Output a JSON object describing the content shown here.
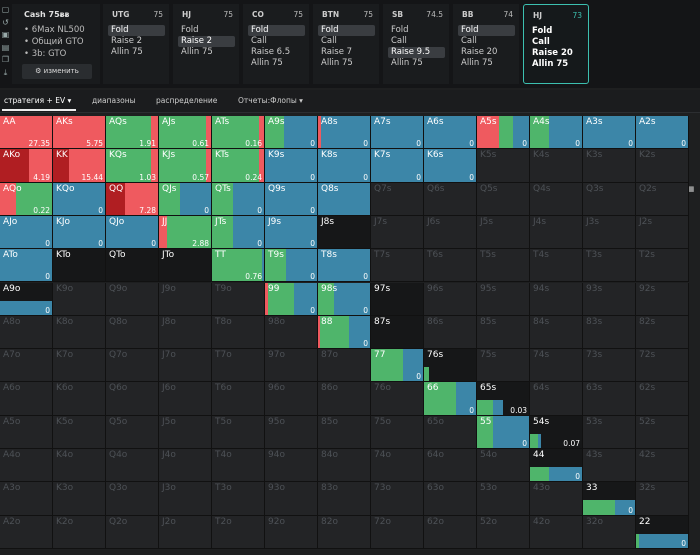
{
  "cash": {
    "title": "Cash 75ᴃᴃ",
    "lines": [
      "6Max NL500",
      "Общий GTO",
      "3b: GTO"
    ],
    "button": "изменить"
  },
  "positions": [
    {
      "name": "UTG",
      "stack": "75",
      "actions": [
        "Fold",
        "Raise 2",
        "Allin 75"
      ],
      "selected": 0,
      "active": false
    },
    {
      "name": "HJ",
      "stack": "75",
      "actions": [
        "Fold",
        "Raise 2",
        "Allin 75"
      ],
      "selected": 1,
      "active": false
    },
    {
      "name": "CO",
      "stack": "75",
      "actions": [
        "Fold",
        "Call",
        "Raise 6.5",
        "Allin 75"
      ],
      "selected": 0,
      "active": false
    },
    {
      "name": "BTN",
      "stack": "75",
      "actions": [
        "Fold",
        "Call",
        "Raise 7",
        "Allin 75"
      ],
      "selected": 0,
      "active": false
    },
    {
      "name": "SB",
      "stack": "74.5",
      "actions": [
        "Fold",
        "Call",
        "Raise 9.5",
        "Allin 75"
      ],
      "selected": 2,
      "active": false
    },
    {
      "name": "BB",
      "stack": "74",
      "actions": [
        "Fold",
        "Call",
        "Raise 20",
        "Allin 75"
      ],
      "selected": 0,
      "active": false
    },
    {
      "name": "HJ",
      "stack": "73",
      "actions": [
        "Fold",
        "Call",
        "Raise 20",
        "Allin 75"
      ],
      "selected": -1,
      "active": true
    }
  ],
  "tabs": [
    "стратегия + EV ▾",
    "диапазоны",
    "распределение",
    "Отчеты:Флопы ▾"
  ],
  "colors": {
    "raise": "#ef5a5f",
    "call": "#4fb56b",
    "fold": "#3c86a8",
    "allin": "#b01e22",
    "empty": "#232426"
  },
  "grid": {
    "rows": [
      [
        "AA",
        "AKs",
        "AQs",
        "AJs",
        "ATs",
        "A9s",
        "A8s",
        "A7s",
        "A6s",
        "A5s",
        "A4s",
        "A3s",
        "A2s"
      ],
      [
        "AKo",
        "KK",
        "KQs",
        "KJs",
        "KTs",
        "K9s",
        "K8s",
        "K7s",
        "K6s",
        "K5s",
        "K4s",
        "K3s",
        "K2s"
      ],
      [
        "AQo",
        "KQo",
        "QQ",
        "QJs",
        "QTs",
        "Q9s",
        "Q8s",
        "Q7s",
        "Q6s",
        "Q5s",
        "Q4s",
        "Q3s",
        "Q2s"
      ],
      [
        "AJo",
        "KJo",
        "QJo",
        "JJ",
        "JTs",
        "J9s",
        "J8s",
        "J7s",
        "J6s",
        "J5s",
        "J4s",
        "J3s",
        "J2s"
      ],
      [
        "ATo",
        "KTo",
        "QTo",
        "JTo",
        "TT",
        "T9s",
        "T8s",
        "T7s",
        "T6s",
        "T5s",
        "T4s",
        "T3s",
        "T2s"
      ],
      [
        "A9o",
        "K9o",
        "Q9o",
        "J9o",
        "T9o",
        "99",
        "98s",
        "97s",
        "96s",
        "95s",
        "94s",
        "93s",
        "92s"
      ],
      [
        "A8o",
        "K8o",
        "Q8o",
        "J8o",
        "T8o",
        "98o",
        "88",
        "87s",
        "86s",
        "85s",
        "84s",
        "83s",
        "82s"
      ],
      [
        "A7o",
        "K7o",
        "Q7o",
        "J7o",
        "T7o",
        "97o",
        "87o",
        "77",
        "76s",
        "75s",
        "74s",
        "73s",
        "72s"
      ],
      [
        "A6o",
        "K6o",
        "Q6o",
        "J6o",
        "T6o",
        "96o",
        "86o",
        "76o",
        "66",
        "65s",
        "64s",
        "63s",
        "62s"
      ],
      [
        "A5o",
        "K5o",
        "Q5o",
        "J5o",
        "T5o",
        "95o",
        "85o",
        "75o",
        "65o",
        "55",
        "54s",
        "53s",
        "52s"
      ],
      [
        "A4o",
        "K4o",
        "Q4o",
        "J4o",
        "T4o",
        "94o",
        "84o",
        "74o",
        "64o",
        "54o",
        "44",
        "43s",
        "42s"
      ],
      [
        "A3o",
        "K3o",
        "Q3o",
        "J3o",
        "T3o",
        "93o",
        "83o",
        "73o",
        "63o",
        "53o",
        "43o",
        "33",
        "32s"
      ],
      [
        "A2o",
        "K2o",
        "Q2o",
        "J2o",
        "T2o",
        "92o",
        "82o",
        "72o",
        "62o",
        "52o",
        "42o",
        "32o",
        "22"
      ]
    ],
    "hands": {
      "AA": {
        "ev": "27.35",
        "mix": [
          [
            "raise",
            1.0
          ]
        ]
      },
      "AKs": {
        "ev": "5.75",
        "mix": [
          [
            "raise",
            1.0
          ]
        ]
      },
      "AQs": {
        "ev": "1.91",
        "mix": [
          [
            "call",
            0.85
          ],
          [
            "raise",
            0.15
          ]
        ]
      },
      "AJs": {
        "ev": "0.61",
        "mix": [
          [
            "call",
            0.88
          ],
          [
            "raise",
            0.12
          ]
        ]
      },
      "ATs": {
        "ev": "0.16",
        "mix": [
          [
            "call",
            0.88
          ],
          [
            "raise",
            0.12
          ]
        ]
      },
      "A9s": {
        "ev": "0",
        "mix": [
          [
            "call",
            0.35
          ],
          [
            "fold",
            0.65
          ]
        ]
      },
      "A8s": {
        "ev": "0",
        "mix": [
          [
            "raise",
            0.05
          ],
          [
            "fold",
            0.95
          ]
        ]
      },
      "A7s": {
        "ev": "0",
        "mix": [
          [
            "fold",
            1.0
          ]
        ]
      },
      "A6s": {
        "ev": "0",
        "mix": [
          [
            "fold",
            1.0
          ]
        ]
      },
      "A5s": {
        "ev": "0",
        "mix": [
          [
            "raise",
            0.42
          ],
          [
            "call",
            0.25
          ],
          [
            "fold",
            0.33
          ]
        ]
      },
      "A4s": {
        "ev": "0",
        "mix": [
          [
            "call",
            0.35
          ],
          [
            "fold",
            0.65
          ]
        ]
      },
      "A3s": {
        "ev": "0",
        "mix": [
          [
            "fold",
            1.0
          ]
        ]
      },
      "A2s": {
        "ev": "0",
        "mix": [
          [
            "fold",
            1.0
          ]
        ]
      },
      "AKo": {
        "ev": "4.19",
        "mix": [
          [
            "allin",
            0.55
          ],
          [
            "raise",
            0.45
          ]
        ]
      },
      "KK": {
        "ev": "15.44",
        "mix": [
          [
            "allin",
            0.3
          ],
          [
            "raise",
            0.7
          ]
        ]
      },
      "KQs": {
        "ev": "1.03",
        "mix": [
          [
            "call",
            0.85
          ],
          [
            "raise",
            0.15
          ]
        ]
      },
      "KJs": {
        "ev": "0.57",
        "mix": [
          [
            "call",
            0.88
          ],
          [
            "raise",
            0.12
          ]
        ]
      },
      "KTs": {
        "ev": "0.24",
        "mix": [
          [
            "call",
            0.88
          ],
          [
            "raise",
            0.12
          ]
        ]
      },
      "K9s": {
        "ev": "0",
        "mix": [
          [
            "fold",
            1.0
          ]
        ]
      },
      "K8s": {
        "ev": "0",
        "mix": [
          [
            "fold",
            1.0
          ]
        ]
      },
      "K7s": {
        "ev": "0",
        "mix": [
          [
            "fold",
            1.0
          ]
        ]
      },
      "K6s": {
        "ev": "0",
        "mix": [
          [
            "fold",
            1.0
          ]
        ]
      },
      "AQo": {
        "ev": "0.22",
        "mix": [
          [
            "raise",
            0.3
          ],
          [
            "call",
            0.7
          ]
        ]
      },
      "KQo": {
        "ev": "0",
        "mix": [
          [
            "fold",
            1.0
          ]
        ]
      },
      "QQ": {
        "ev": "7.28",
        "mix": [
          [
            "allin",
            0.35
          ],
          [
            "raise",
            0.65
          ]
        ]
      },
      "QJs": {
        "ev": "0",
        "mix": [
          [
            "call",
            0.4
          ],
          [
            "fold",
            0.6
          ]
        ]
      },
      "QTs": {
        "ev": "0",
        "mix": [
          [
            "call",
            0.4
          ],
          [
            "fold",
            0.6
          ]
        ]
      },
      "Q9s": {
        "ev": "0",
        "mix": [
          [
            "fold",
            1.0
          ]
        ]
      },
      "Q8s": {
        "ev": "",
        "mix": [
          [
            "fold",
            1.0
          ]
        ]
      },
      "AJo": {
        "ev": "0",
        "mix": [
          [
            "fold",
            1.0
          ]
        ]
      },
      "KJo": {
        "ev": "0",
        "mix": [
          [
            "fold",
            1.0
          ]
        ]
      },
      "QJo": {
        "ev": "0",
        "mix": [
          [
            "fold",
            1.0
          ]
        ]
      },
      "JJ": {
        "ev": "2.88",
        "mix": [
          [
            "raise",
            0.15
          ],
          [
            "call",
            0.85
          ]
        ]
      },
      "JTs": {
        "ev": "0",
        "mix": [
          [
            "call",
            0.4
          ],
          [
            "fold",
            0.6
          ]
        ]
      },
      "J9s": {
        "ev": "0",
        "mix": [
          [
            "fold",
            1.0
          ]
        ]
      },
      "J8s": {
        "ev": "",
        "mix": []
      },
      "ATo": {
        "ev": "0",
        "mix": [
          [
            "fold",
            1.0
          ]
        ]
      },
      "KTo": {
        "ev": "",
        "mix": []
      },
      "QTo": {
        "ev": "",
        "mix": []
      },
      "JTo": {
        "ev": "",
        "mix": []
      },
      "TT": {
        "ev": "0.76",
        "mix": [
          [
            "call",
            0.95
          ],
          [
            "fold",
            0.05
          ]
        ]
      },
      "T9s": {
        "ev": "0",
        "mix": [
          [
            "call",
            0.4
          ],
          [
            "fold",
            0.6
          ]
        ]
      },
      "T8s": {
        "ev": "0",
        "mix": [
          [
            "fold",
            1.0
          ]
        ]
      },
      "A9o": {
        "ev": "0",
        "mix": [
          [
            "fold",
            1.0
          ]
        ],
        "half": true
      },
      "99": {
        "ev": "0",
        "mix": [
          [
            "raise",
            0.05
          ],
          [
            "call",
            0.5
          ],
          [
            "fold",
            0.45
          ]
        ]
      },
      "98s": {
        "ev": "0",
        "mix": [
          [
            "call",
            0.3
          ],
          [
            "fold",
            0.7
          ]
        ]
      },
      "97s": {
        "ev": "",
        "mix": []
      },
      "88": {
        "ev": "0",
        "mix": [
          [
            "raise",
            0.03
          ],
          [
            "call",
            0.55
          ],
          [
            "fold",
            0.42
          ]
        ]
      },
      "87s": {
        "ev": "",
        "mix": [],
        "half": true
      },
      "77": {
        "ev": "0",
        "mix": [
          [
            "call",
            0.6
          ],
          [
            "fold",
            0.4
          ]
        ]
      },
      "76s": {
        "ev": "",
        "mix": [
          [
            "call",
            0.1
          ]
        ],
        "half": true
      },
      "66": {
        "ev": "0",
        "mix": [
          [
            "call",
            0.6
          ],
          [
            "fold",
            0.4
          ]
        ]
      },
      "65s": {
        "ev": "0.03",
        "mix": [
          [
            "call",
            0.3
          ],
          [
            "fold",
            0.2
          ]
        ],
        "half": true
      },
      "55": {
        "ev": "0",
        "mix": [
          [
            "call",
            0.3
          ],
          [
            "fold",
            0.7
          ]
        ]
      },
      "54s": {
        "ev": "0.07",
        "mix": [
          [
            "call",
            0.15
          ],
          [
            "fold",
            0.05
          ]
        ],
        "half": true
      },
      "44": {
        "ev": "0",
        "mix": [
          [
            "call",
            0.35
          ],
          [
            "fold",
            0.65
          ]
        ],
        "half": true
      },
      "33": {
        "ev": "0",
        "mix": [
          [
            "call",
            0.6
          ],
          [
            "fold",
            0.4
          ]
        ],
        "half": true
      },
      "22": {
        "ev": "0",
        "mix": [
          [
            "call",
            0.05
          ],
          [
            "fold",
            0.95
          ]
        ],
        "half": true
      }
    }
  }
}
